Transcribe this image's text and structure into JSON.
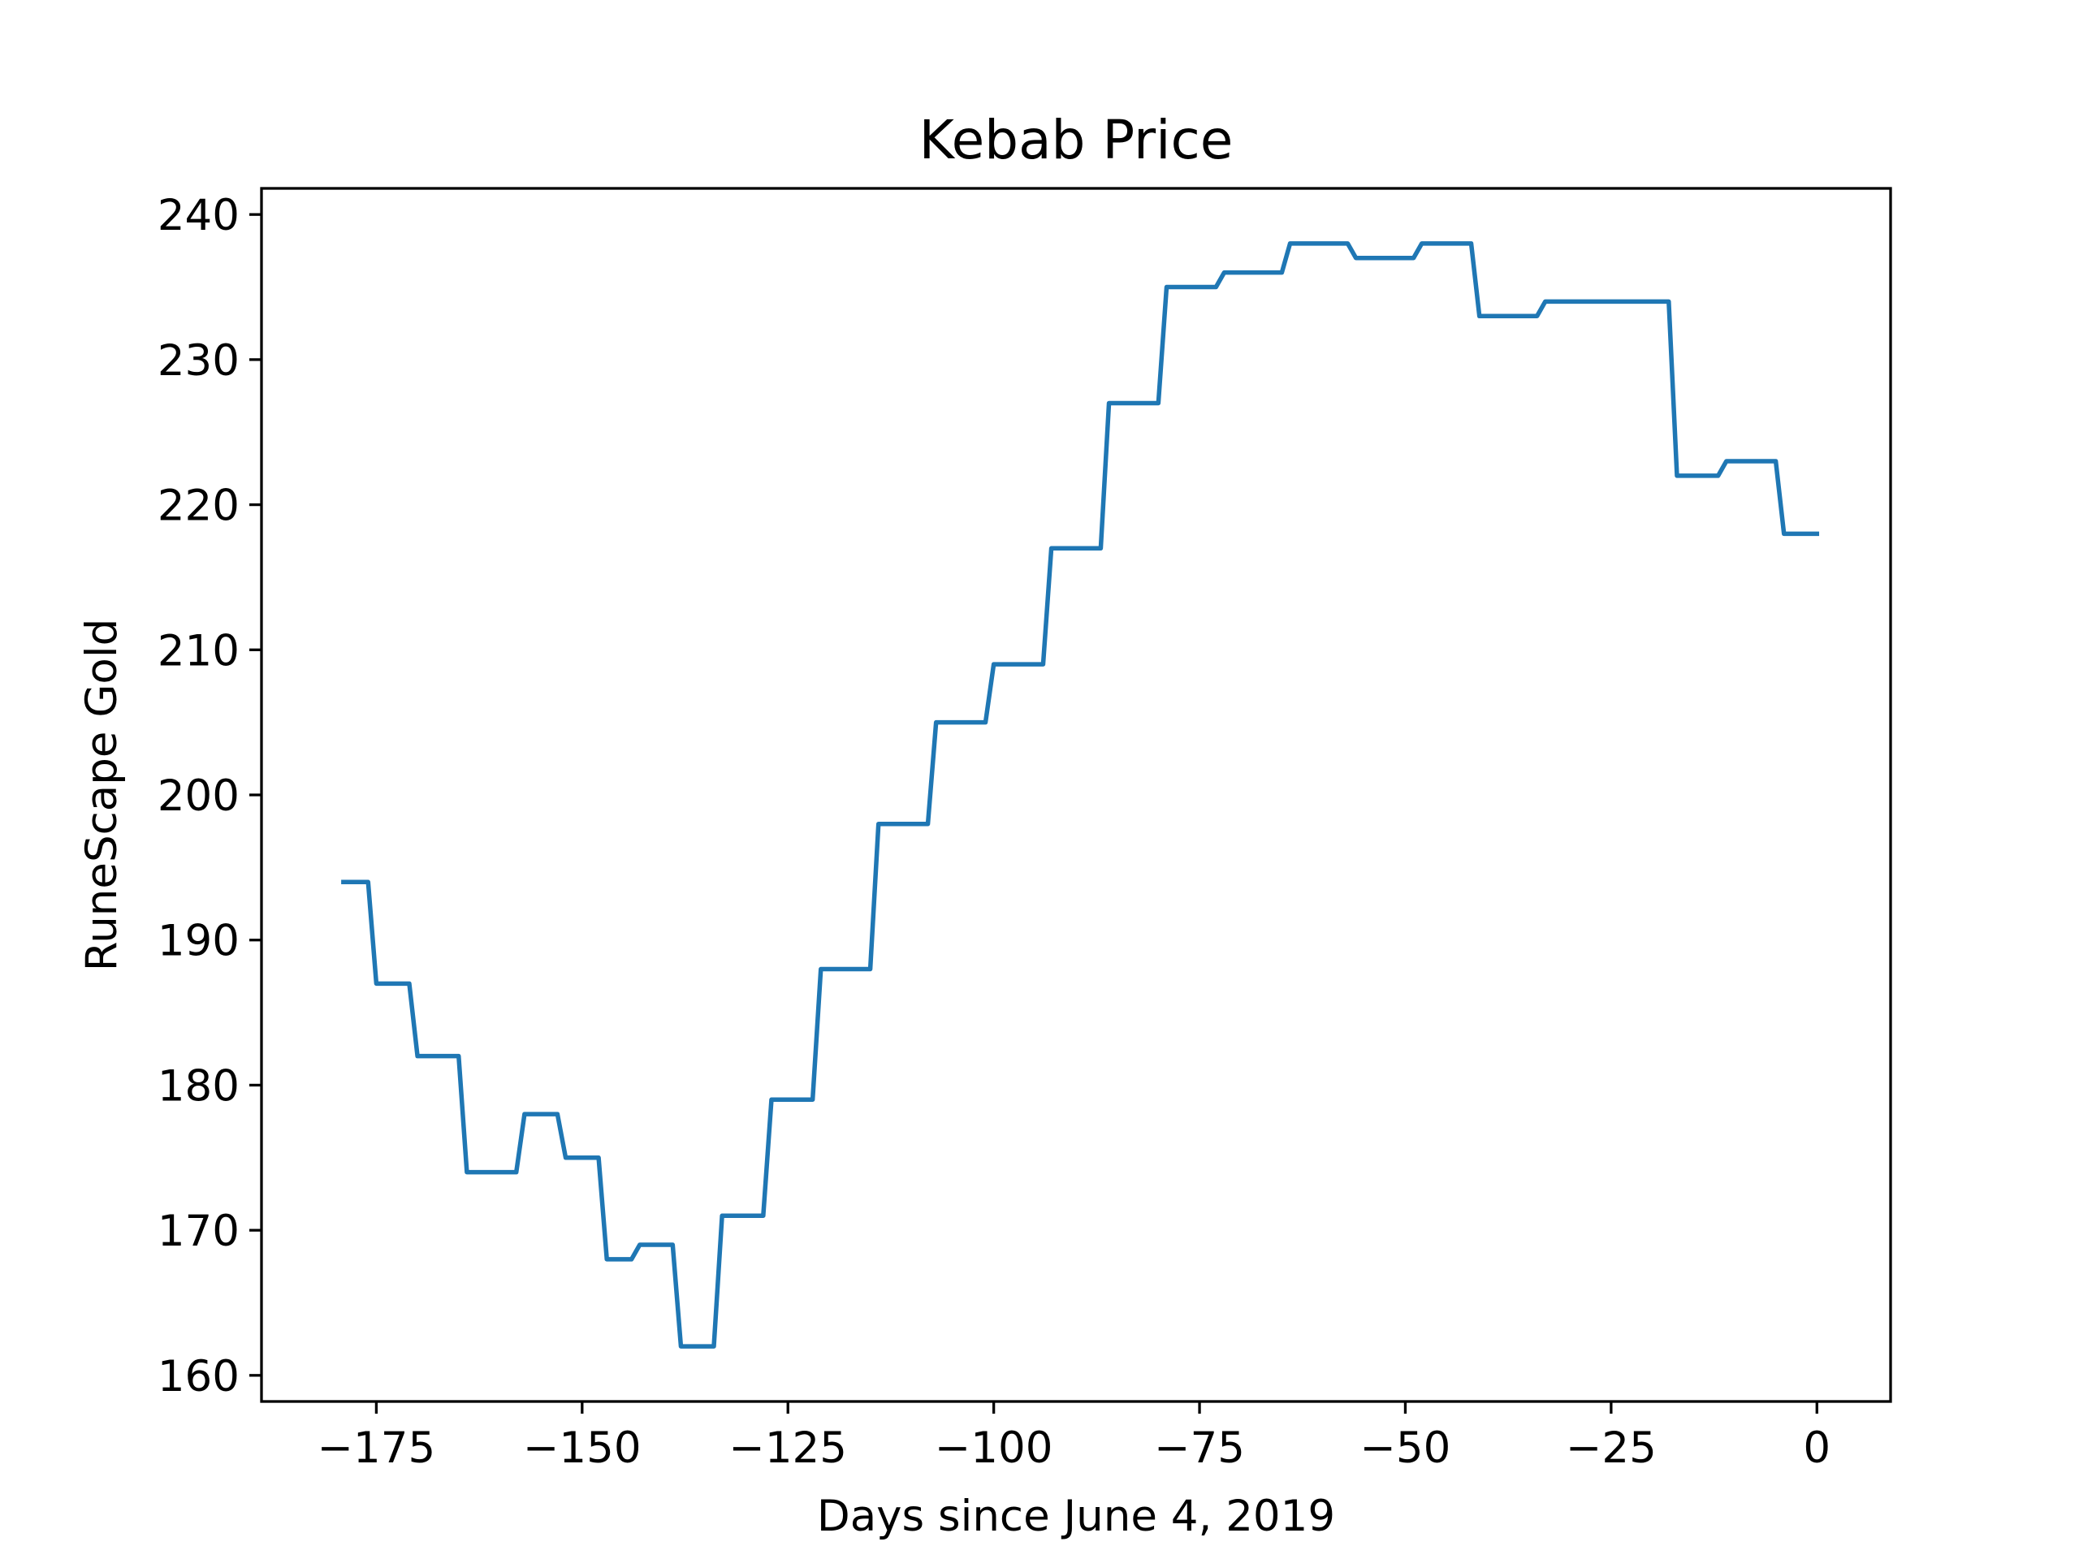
{
  "chart_data": {
    "type": "line",
    "title": "Kebab Price",
    "xlabel": "Days since June 4, 2019",
    "ylabel": "RuneScape Gold",
    "xlim": [
      -188.95,
      8.95
    ],
    "ylim": [
      158.2,
      241.8
    ],
    "grid": false,
    "x_ticks": [
      {
        "value": -175,
        "label": "−175"
      },
      {
        "value": -150,
        "label": "−150"
      },
      {
        "value": -125,
        "label": "−125"
      },
      {
        "value": -100,
        "label": "−100"
      },
      {
        "value": -75,
        "label": "−75"
      },
      {
        "value": -50,
        "label": "−50"
      },
      {
        "value": -25,
        "label": "−25"
      },
      {
        "value": 0,
        "label": "0"
      }
    ],
    "y_ticks": [
      {
        "value": 160,
        "label": "160"
      },
      {
        "value": 170,
        "label": "170"
      },
      {
        "value": 180,
        "label": "180"
      },
      {
        "value": 190,
        "label": "190"
      },
      {
        "value": 200,
        "label": "200"
      },
      {
        "value": 210,
        "label": "210"
      },
      {
        "value": 220,
        "label": "220"
      },
      {
        "value": 230,
        "label": "230"
      },
      {
        "value": 240,
        "label": "240"
      }
    ],
    "series": [
      {
        "color": "#1f77b4",
        "x": [
          -179,
          -176,
          -175,
          -171,
          -170,
          -165,
          -164,
          -158,
          -157,
          -153,
          -152,
          -148,
          -147,
          -144,
          -143,
          -139,
          -138,
          -134,
          -133,
          -128,
          -127,
          -122,
          -121,
          -115,
          -114,
          -108,
          -107,
          -101,
          -100,
          -94,
          -93,
          -87,
          -86,
          -80,
          -79,
          -73,
          -72,
          -65,
          -64,
          -57,
          -56,
          -49,
          -48,
          -42,
          -41,
          -34,
          -33,
          -18,
          -17,
          -12,
          -11,
          -5,
          -4,
          0
        ],
        "y": [
          194,
          194,
          187,
          187,
          182,
          182,
          174,
          174,
          178,
          178,
          175,
          175,
          168,
          168,
          169,
          169,
          162,
          162,
          171,
          171,
          179,
          179,
          188,
          188,
          198,
          198,
          205,
          205,
          209,
          209,
          217,
          217,
          227,
          227,
          235,
          235,
          236,
          236,
          238,
          238,
          237,
          237,
          238,
          238,
          233,
          233,
          234,
          234,
          222,
          222,
          223,
          223,
          218,
          218
        ]
      }
    ]
  }
}
